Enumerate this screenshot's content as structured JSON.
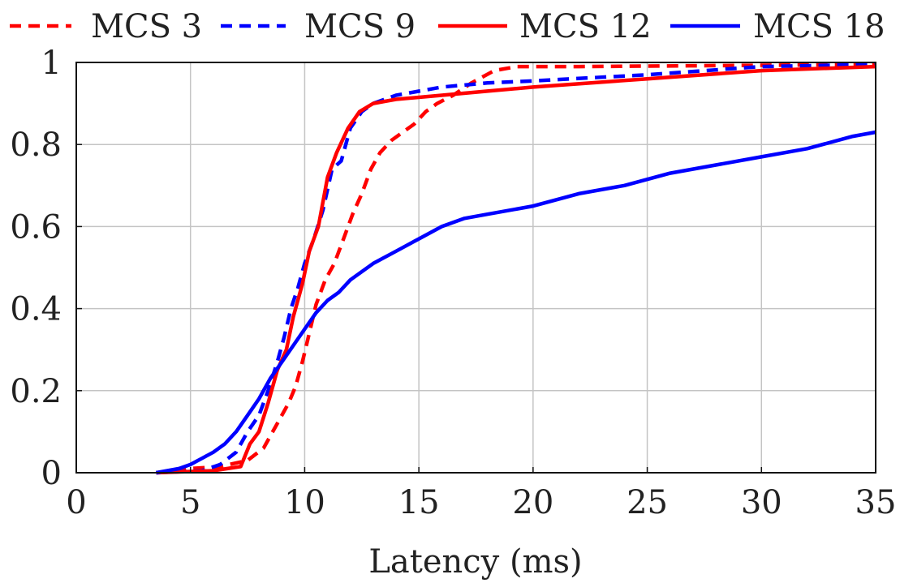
{
  "chart_data": {
    "type": "line",
    "title": "",
    "xlabel": "Latency (ms)",
    "ylabel": "",
    "xlim": [
      0,
      35
    ],
    "ylim": [
      0,
      1
    ],
    "xticks": [
      "0",
      "5",
      "10",
      "15",
      "20",
      "25",
      "30",
      "35"
    ],
    "yticks": [
      "0",
      "0.2",
      "0.4",
      "0.6",
      "0.8",
      "1"
    ],
    "xtick_values": [
      0,
      5,
      10,
      15,
      20,
      25,
      30,
      35
    ],
    "ytick_values": [
      0,
      0.2,
      0.4,
      0.6,
      0.8,
      1
    ],
    "grid": true,
    "legend_position": "top, above plot",
    "series": [
      {
        "name": "MCS 3",
        "color": "#ff0000",
        "style": "dashed",
        "points": [
          [
            3.5,
            0
          ],
          [
            5,
            0.01
          ],
          [
            6.3,
            0.015
          ],
          [
            7.5,
            0.03
          ],
          [
            8.2,
            0.06
          ],
          [
            8.8,
            0.12
          ],
          [
            9.3,
            0.17
          ],
          [
            9.6,
            0.21
          ],
          [
            9.9,
            0.27
          ],
          [
            10.2,
            0.34
          ],
          [
            10.5,
            0.41
          ],
          [
            10.9,
            0.47
          ],
          [
            11.3,
            0.51
          ],
          [
            11.7,
            0.57
          ],
          [
            12.1,
            0.63
          ],
          [
            12.5,
            0.68
          ],
          [
            12.9,
            0.74
          ],
          [
            13.3,
            0.78
          ],
          [
            13.8,
            0.81
          ],
          [
            14.3,
            0.83
          ],
          [
            14.8,
            0.85
          ],
          [
            15.3,
            0.88
          ],
          [
            15.8,
            0.9
          ],
          [
            16.5,
            0.92
          ],
          [
            17.3,
            0.95
          ],
          [
            18.3,
            0.98
          ],
          [
            19.3,
            0.99
          ],
          [
            22,
            0.99
          ],
          [
            35,
            0.995
          ]
        ]
      },
      {
        "name": "MCS 9",
        "color": "#0000ff",
        "style": "dashed",
        "points": [
          [
            3.5,
            0
          ],
          [
            5.5,
            0.005
          ],
          [
            6.3,
            0.02
          ],
          [
            7,
            0.05
          ],
          [
            7.5,
            0.1
          ],
          [
            8,
            0.14
          ],
          [
            8.4,
            0.2
          ],
          [
            8.8,
            0.27
          ],
          [
            9.1,
            0.33
          ],
          [
            9.4,
            0.4
          ],
          [
            9.7,
            0.45
          ],
          [
            10,
            0.51
          ],
          [
            10.4,
            0.57
          ],
          [
            10.8,
            0.64
          ],
          [
            11.2,
            0.74
          ],
          [
            11.6,
            0.76
          ],
          [
            12,
            0.84
          ],
          [
            12.5,
            0.88
          ],
          [
            13,
            0.9
          ],
          [
            14,
            0.92
          ],
          [
            16,
            0.94
          ],
          [
            18,
            0.95
          ],
          [
            20,
            0.955
          ],
          [
            25,
            0.97
          ],
          [
            30,
            0.99
          ],
          [
            35,
            0.995
          ]
        ]
      },
      {
        "name": "MCS 12",
        "color": "#ff0000",
        "style": "solid",
        "points": [
          [
            3.5,
            0
          ],
          [
            6,
            0.005
          ],
          [
            7.2,
            0.015
          ],
          [
            7.6,
            0.07
          ],
          [
            8,
            0.1
          ],
          [
            8.4,
            0.17
          ],
          [
            8.8,
            0.25
          ],
          [
            9.2,
            0.3
          ],
          [
            9.5,
            0.38
          ],
          [
            9.9,
            0.46
          ],
          [
            10.2,
            0.54
          ],
          [
            10.6,
            0.6
          ],
          [
            11,
            0.72
          ],
          [
            11.4,
            0.78
          ],
          [
            11.9,
            0.84
          ],
          [
            12.4,
            0.88
          ],
          [
            13,
            0.9
          ],
          [
            14,
            0.91
          ],
          [
            16,
            0.92
          ],
          [
            18,
            0.93
          ],
          [
            20,
            0.94
          ],
          [
            25,
            0.96
          ],
          [
            30,
            0.98
          ],
          [
            35,
            0.99
          ]
        ]
      },
      {
        "name": "MCS 18",
        "color": "#0000ff",
        "style": "solid",
        "points": [
          [
            3.5,
            0
          ],
          [
            4.5,
            0.01
          ],
          [
            5,
            0.02
          ],
          [
            5.5,
            0.035
          ],
          [
            6,
            0.05
          ],
          [
            6.5,
            0.07
          ],
          [
            7,
            0.1
          ],
          [
            7.5,
            0.14
          ],
          [
            8,
            0.18
          ],
          [
            8.5,
            0.23
          ],
          [
            9,
            0.27
          ],
          [
            9.5,
            0.31
          ],
          [
            10,
            0.35
          ],
          [
            10.5,
            0.39
          ],
          [
            11,
            0.42
          ],
          [
            11.5,
            0.44
          ],
          [
            12,
            0.47
          ],
          [
            13,
            0.51
          ],
          [
            14,
            0.54
          ],
          [
            15,
            0.57
          ],
          [
            16,
            0.6
          ],
          [
            17,
            0.62
          ],
          [
            18,
            0.63
          ],
          [
            20,
            0.65
          ],
          [
            22,
            0.68
          ],
          [
            24,
            0.7
          ],
          [
            26,
            0.73
          ],
          [
            28,
            0.75
          ],
          [
            30,
            0.77
          ],
          [
            32,
            0.79
          ],
          [
            34,
            0.82
          ],
          [
            35,
            0.83
          ]
        ]
      }
    ]
  }
}
